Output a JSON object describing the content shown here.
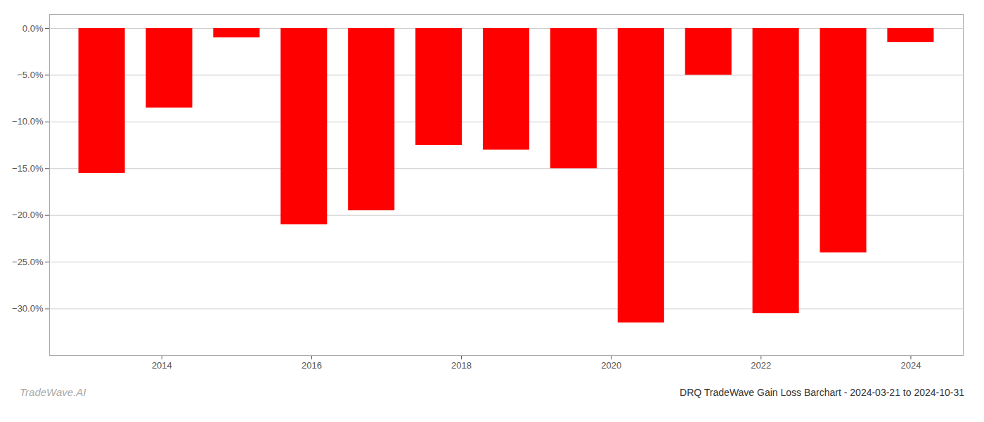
{
  "chart_data": {
    "type": "bar",
    "title": "DRQ TradeWave Gain Loss Barchart - 2024-03-21 to 2024-10-31",
    "annotations": [
      "TradeWave.AI"
    ],
    "x": [
      2013.2,
      2014.1,
      2015.0,
      2015.9,
      2016.8,
      2017.7,
      2018.6,
      2019.5,
      2020.4,
      2021.3,
      2022.2,
      2023.1,
      2024.0
    ],
    "values": [
      -15.5,
      -8.5,
      -1.0,
      -21.0,
      -19.5,
      -12.5,
      -13.0,
      -15.0,
      -31.5,
      -5.0,
      -30.5,
      -24.0,
      -1.5
    ],
    "color": "#ff0000",
    "xlim": [
      2012.5,
      2024.7
    ],
    "xticks": [
      2014,
      2016,
      2018,
      2020,
      2022,
      2024
    ],
    "ylim": [
      -35,
      1.5
    ],
    "yticks": [
      {
        "value": 0,
        "label": "0.0%"
      },
      {
        "value": -5,
        "label": "−5.0%"
      },
      {
        "value": -10,
        "label": "−10.0%"
      },
      {
        "value": -15,
        "label": "−15.0%"
      },
      {
        "value": -20,
        "label": "−20.0%"
      },
      {
        "value": -25,
        "label": "−25.0%"
      },
      {
        "value": -30,
        "label": "−30.0%"
      }
    ],
    "grid": true
  }
}
